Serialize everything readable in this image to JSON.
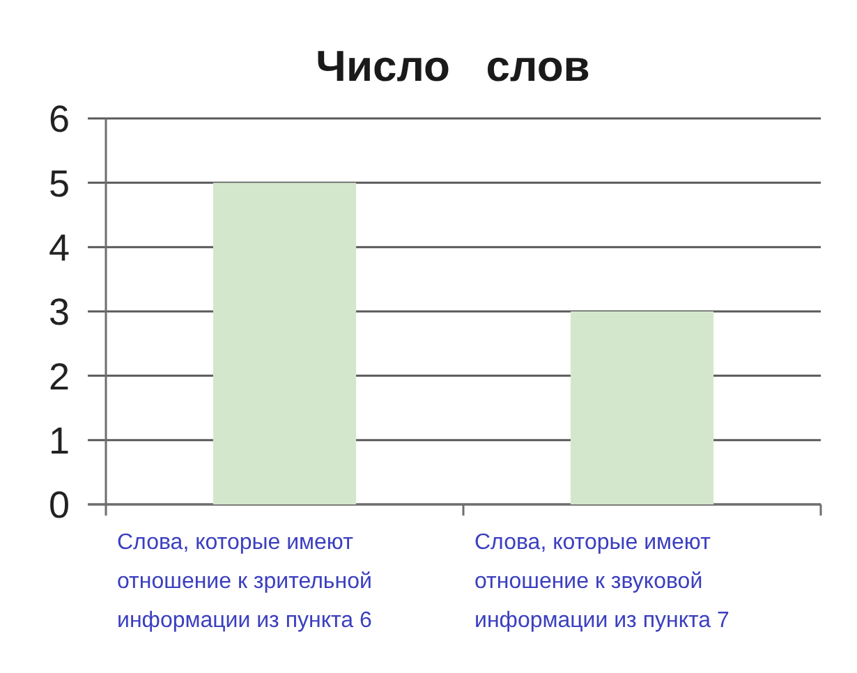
{
  "chart_data": {
    "type": "bar",
    "title": "Число   слов",
    "categories": [
      "Слова, которые имеют отношение к зрительной информации из пункта 6",
      "Слова, которые имеют отношение к звуковой информации из пункта 7"
    ],
    "values": [
      5,
      3
    ],
    "color": "#d3e7cc",
    "ylim": [
      0,
      6
    ],
    "yticks": [
      0,
      1,
      2,
      3,
      4,
      5,
      6
    ],
    "grid": "y"
  }
}
